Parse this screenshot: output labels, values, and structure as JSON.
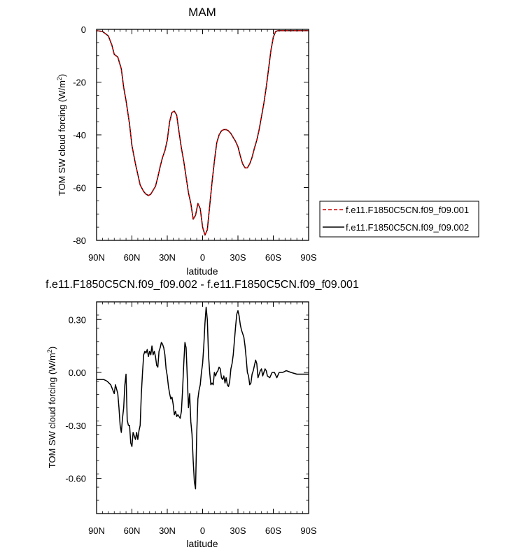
{
  "chart_data": [
    {
      "type": "line",
      "title": "MAM",
      "xlabel": "latitude",
      "ylabel": "TOM SW cloud forcing (W/m",
      "ylabel_sup": "2",
      "ylabel_tail": ")",
      "xlim": [
        90,
        -90
      ],
      "ylim": [
        -80,
        0
      ],
      "x_ticks": [
        90,
        60,
        30,
        0,
        -30,
        -60,
        -90
      ],
      "x_tick_labels": [
        "90N",
        "60N",
        "30N",
        "0",
        "30S",
        "60S",
        "90S"
      ],
      "y_ticks": [
        0,
        -20,
        -40,
        -60,
        -80
      ],
      "y_tick_labels": [
        "0",
        "-20",
        "-40",
        "-60",
        "-80"
      ],
      "legend_position": "right",
      "series": [
        {
          "name": "f.e11.F1850C5CN.f09_f09.001",
          "color": "#cc0000",
          "dash": "dashed",
          "x": [
            90,
            85,
            80,
            77,
            75,
            72,
            69,
            67,
            65,
            62,
            60,
            57,
            55,
            53,
            50,
            48,
            46,
            44,
            42,
            40,
            38,
            36,
            34,
            32,
            30,
            28,
            26,
            24,
            22,
            20,
            18,
            16,
            14,
            12,
            10,
            8,
            6,
            4,
            2,
            0,
            -2,
            -4,
            -6,
            -8,
            -10,
            -12,
            -14,
            -16,
            -18,
            -20,
            -22,
            -24,
            -26,
            -28,
            -30,
            -32,
            -34,
            -36,
            -38,
            -40,
            -42,
            -44,
            -46,
            -48,
            -50,
            -52,
            -54,
            -56,
            -58,
            -60,
            -62,
            -64,
            -66,
            -68,
            -70,
            -72,
            -75,
            -78,
            -81,
            -84,
            -87,
            -90
          ],
          "values": [
            -0.5,
            -0.8,
            -2.5,
            -6,
            -9.5,
            -10.5,
            -15,
            -22,
            -27,
            -36,
            -44,
            -51,
            -55,
            -59,
            -61.5,
            -62.5,
            -63,
            -62.5,
            -61,
            -59.5,
            -56,
            -52,
            -48.5,
            -46,
            -42,
            -35,
            -31.5,
            -31,
            -32.5,
            -39,
            -45,
            -50,
            -56,
            -62,
            -66,
            -72,
            -70.5,
            -66,
            -68,
            -75,
            -78,
            -76,
            -67,
            -58,
            -50,
            -43,
            -40,
            -38.5,
            -38,
            -38,
            -38.5,
            -39.5,
            -41,
            -42.5,
            -44.5,
            -48,
            -51,
            -52.5,
            -52.5,
            -51,
            -48.5,
            -45,
            -42,
            -38,
            -33,
            -28,
            -22,
            -15,
            -8,
            -3,
            -0.8,
            -0.5,
            -0.5,
            -0.5,
            -0.5,
            -0.5,
            -0.5,
            -0.5,
            -0.5,
            -0.5,
            -0.5,
            -0.5
          ]
        },
        {
          "name": "f.e11.F1850C5CN.f09_f09.002",
          "color": "#000000",
          "dash": "solid",
          "x": [
            90,
            85,
            80,
            77,
            75,
            72,
            69,
            67,
            65,
            62,
            60,
            57,
            55,
            53,
            50,
            48,
            46,
            44,
            42,
            40,
            38,
            36,
            34,
            32,
            30,
            28,
            26,
            24,
            22,
            20,
            18,
            16,
            14,
            12,
            10,
            8,
            6,
            4,
            2,
            0,
            -2,
            -4,
            -6,
            -8,
            -10,
            -12,
            -14,
            -16,
            -18,
            -20,
            -22,
            -24,
            -26,
            -28,
            -30,
            -32,
            -34,
            -36,
            -38,
            -40,
            -42,
            -44,
            -46,
            -48,
            -50,
            -52,
            -54,
            -56,
            -58,
            -60,
            -62,
            -64,
            -66,
            -68,
            -70,
            -72,
            -75,
            -78,
            -81,
            -84,
            -87,
            -90
          ],
          "values": [
            -0.5,
            -0.8,
            -2.5,
            -6,
            -9.5,
            -10.5,
            -15,
            -22,
            -27,
            -36,
            -44,
            -51,
            -55,
            -59,
            -61.5,
            -62.5,
            -63,
            -62.5,
            -61,
            -59.5,
            -56,
            -52,
            -48.5,
            -46,
            -42,
            -35,
            -31.5,
            -31,
            -32.5,
            -39,
            -45,
            -50,
            -56,
            -62,
            -66,
            -72,
            -70.5,
            -66,
            -68,
            -75,
            -78,
            -76,
            -67,
            -58,
            -50,
            -43,
            -40,
            -38.5,
            -38,
            -38,
            -38.5,
            -39.5,
            -41,
            -42.5,
            -44.5,
            -48,
            -51,
            -52.5,
            -52.5,
            -51,
            -48.5,
            -45,
            -42,
            -38,
            -33,
            -28,
            -22,
            -15,
            -8,
            -3,
            -0.8,
            -0.5,
            -0.5,
            -0.5,
            -0.5,
            -0.5,
            -0.5,
            -0.5,
            -0.5,
            -0.5,
            -0.5,
            -0.5
          ]
        }
      ]
    },
    {
      "type": "line",
      "title": "f.e11.F1850C5CN.f09_f09.002 - f.e11.F1850C5CN.f09_f09.001",
      "xlabel": "latitude",
      "ylabel": "TOM SW cloud forcing (W/m",
      "ylabel_sup": "2",
      "ylabel_tail": ")",
      "xlim": [
        90,
        -90
      ],
      "ylim": [
        -0.8,
        0.4
      ],
      "x_ticks": [
        90,
        60,
        30,
        0,
        -30,
        -60,
        -90
      ],
      "x_tick_labels": [
        "90N",
        "60N",
        "30N",
        "0",
        "30S",
        "60S",
        "90S"
      ],
      "y_ticks": [
        0.3,
        0,
        -0.3,
        -0.6
      ],
      "y_tick_labels": [
        "0.30",
        "0.00",
        "-0.30",
        "-0.60"
      ],
      "series": [
        {
          "color": "#000000",
          "dash": "solid",
          "x": [
            90,
            87,
            84,
            81,
            78,
            75,
            74,
            72,
            71,
            70,
            69,
            68,
            67,
            66,
            65,
            64,
            63,
            62,
            61,
            60,
            59,
            58,
            57,
            56,
            55,
            54,
            53,
            52,
            51,
            50,
            49,
            48,
            47,
            46,
            45,
            44,
            43,
            42,
            41,
            40,
            39,
            38,
            37,
            36,
            35,
            34,
            33,
            32,
            31,
            30,
            29,
            28,
            27,
            26,
            25,
            24,
            23,
            22,
            21,
            20,
            19,
            18,
            17,
            16,
            15,
            14,
            13,
            12,
            11,
            10,
            9,
            8,
            7,
            6,
            5,
            4,
            3,
            2,
            1,
            0,
            -1,
            -2,
            -3,
            -4,
            -5,
            -6,
            -7,
            -8,
            -9,
            -10,
            -11,
            -12,
            -13,
            -14,
            -15,
            -16,
            -17,
            -18,
            -19,
            -20,
            -21,
            -22,
            -23,
            -24,
            -25,
            -26,
            -27,
            -28,
            -29,
            -30,
            -31,
            -32,
            -33,
            -34,
            -35,
            -36,
            -37,
            -38,
            -39,
            -40,
            -41,
            -42,
            -43,
            -44,
            -45,
            -46,
            -47,
            -48,
            -49,
            -50,
            -51,
            -52,
            -53,
            -54,
            -55,
            -57,
            -59,
            -61,
            -63,
            -65,
            -68,
            -71,
            -75,
            -80,
            -85,
            -90
          ],
          "values": [
            -0.04,
            -0.04,
            -0.04,
            -0.05,
            -0.07,
            -0.12,
            -0.07,
            -0.12,
            -0.2,
            -0.3,
            -0.34,
            -0.26,
            -0.2,
            -0.07,
            -0.01,
            -0.27,
            -0.3,
            -0.3,
            -0.4,
            -0.42,
            -0.34,
            -0.36,
            -0.38,
            -0.34,
            -0.38,
            -0.33,
            -0.3,
            -0.12,
            0.0,
            0.1,
            0.12,
            0.11,
            0.13,
            0.09,
            0.12,
            0.1,
            0.15,
            0.1,
            0.12,
            0.09,
            0.04,
            0.03,
            0.12,
            0.14,
            0.17,
            0.16,
            0.14,
            0.1,
            0.02,
            -0.02,
            -0.08,
            -0.12,
            -0.15,
            -0.14,
            -0.18,
            -0.24,
            -0.22,
            -0.25,
            -0.24,
            -0.25,
            -0.26,
            -0.22,
            -0.1,
            0.05,
            0.17,
            0.14,
            -0.03,
            -0.2,
            -0.12,
            -0.28,
            -0.35,
            -0.5,
            -0.62,
            -0.66,
            -0.35,
            -0.15,
            -0.1,
            -0.07,
            0.0,
            0.05,
            0.15,
            0.28,
            0.37,
            0.3,
            0.1,
            0.0,
            -0.07,
            -0.06,
            -0.07,
            0.0,
            -0.02,
            0.0,
            0.01,
            0.03,
            0.02,
            -0.03,
            -0.04,
            -0.02,
            -0.06,
            -0.03,
            -0.07,
            -0.08,
            -0.05,
            0.02,
            0.05,
            0.1,
            0.18,
            0.26,
            0.33,
            0.35,
            0.32,
            0.27,
            0.24,
            0.22,
            0.2,
            0.15,
            0.08,
            0.0,
            -0.02,
            -0.07,
            -0.06,
            -0.01,
            0.01,
            0.04,
            0.07,
            0.05,
            -0.03,
            -0.01,
            0.01,
            0.02,
            -0.02,
            0.0,
            0.02,
            0.01,
            -0.02,
            -0.03,
            0.0,
            0.0,
            -0.03,
            0.0,
            0.0,
            0.01,
            0.0,
            -0.01,
            -0.01,
            -0.01
          ]
        }
      ]
    }
  ]
}
